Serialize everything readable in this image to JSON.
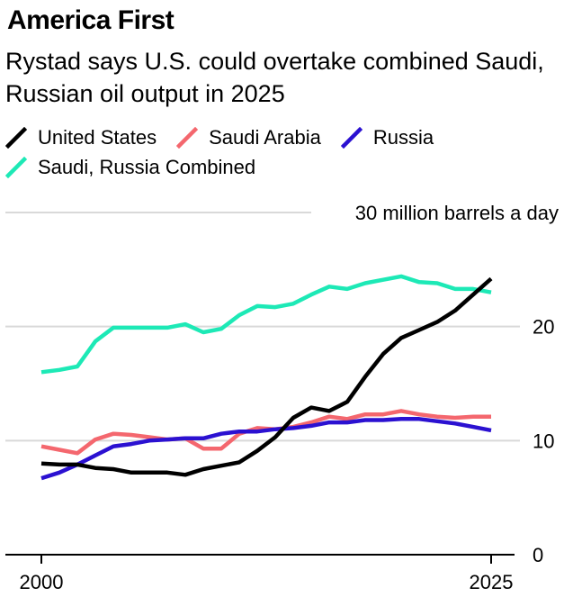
{
  "title": "America First",
  "subtitle": "Rystad says U.S. could overtake combined Saudi, Russian oil output in 2025",
  "legend": [
    {
      "name": "United States",
      "color": "#000000"
    },
    {
      "name": "Saudi Arabia",
      "color": "#f4676e"
    },
    {
      "name": "Russia",
      "color": "#2b11d1"
    },
    {
      "name": "Saudi, Russia Combined",
      "color": "#1de9b6"
    }
  ],
  "chart_data": {
    "type": "line",
    "title": "America First",
    "subtitle": "Rystad says U.S. could overtake combined Saudi, Russian oil output in 2025",
    "xlabel": "",
    "ylabel": "",
    "unit_label": "30 million barrels a day",
    "x": [
      2000,
      2001,
      2002,
      2003,
      2004,
      2005,
      2006,
      2007,
      2008,
      2009,
      2010,
      2011,
      2012,
      2013,
      2014,
      2015,
      2016,
      2017,
      2018,
      2019,
      2020,
      2021,
      2022,
      2023,
      2024,
      2025
    ],
    "xlim": [
      1998,
      2026.6
    ],
    "x_ticks": [
      2000,
      2025
    ],
    "x_tick_labels": [
      "2000",
      "2025"
    ],
    "ylim": [
      0,
      30
    ],
    "y_ticks": [
      0,
      10,
      20,
      30
    ],
    "y_tick_labels": [
      "0",
      "10",
      "20",
      "30 million barrels a day"
    ],
    "grid": true,
    "series": [
      {
        "name": "Saudi, Russia Combined",
        "color": "#1de9b6",
        "values": [
          16.0,
          16.2,
          16.5,
          18.7,
          19.9,
          19.9,
          19.9,
          19.9,
          20.2,
          19.5,
          19.8,
          21.0,
          21.8,
          21.7,
          22.0,
          22.8,
          23.5,
          23.3,
          23.8,
          24.1,
          24.4,
          23.9,
          23.8,
          23.3,
          23.3,
          23.0
        ]
      },
      {
        "name": "Saudi Arabia",
        "color": "#f4676e",
        "values": [
          9.5,
          9.2,
          8.9,
          10.1,
          10.6,
          10.5,
          10.3,
          10.1,
          10.2,
          9.3,
          9.3,
          10.6,
          11.1,
          11.0,
          11.2,
          11.6,
          12.1,
          11.9,
          12.3,
          12.3,
          12.6,
          12.3,
          12.1,
          12.0,
          12.1,
          12.1
        ]
      },
      {
        "name": "Russia",
        "color": "#2b11d1",
        "values": [
          6.7,
          7.2,
          7.9,
          8.7,
          9.5,
          9.7,
          10.0,
          10.1,
          10.2,
          10.2,
          10.6,
          10.8,
          10.8,
          11.0,
          11.1,
          11.3,
          11.6,
          11.6,
          11.8,
          11.8,
          11.9,
          11.9,
          11.7,
          11.5,
          11.2,
          10.9
        ]
      },
      {
        "name": "United States",
        "color": "#000000",
        "values": [
          8.0,
          7.9,
          7.9,
          7.6,
          7.5,
          7.2,
          7.2,
          7.2,
          7.0,
          7.5,
          7.8,
          8.1,
          9.1,
          10.3,
          12.0,
          12.9,
          12.6,
          13.4,
          15.6,
          17.6,
          19.0,
          19.7,
          20.4,
          21.4,
          22.8,
          24.2
        ]
      }
    ]
  }
}
